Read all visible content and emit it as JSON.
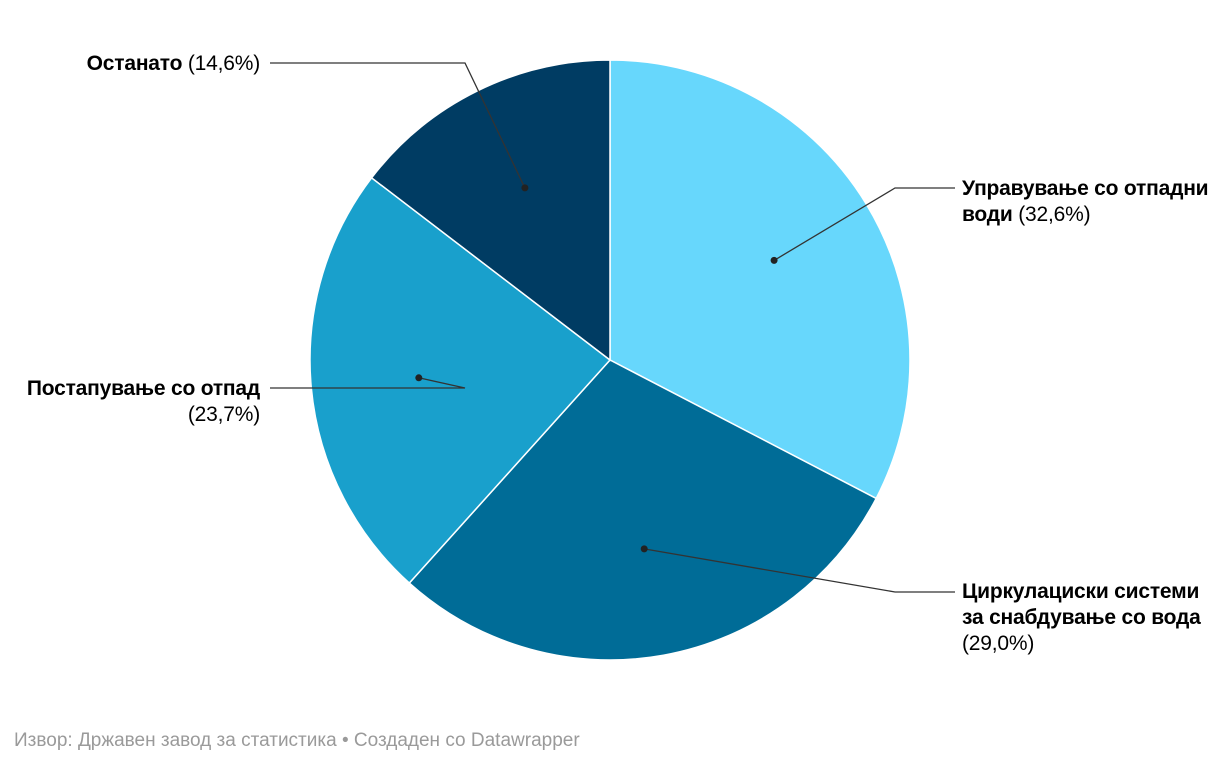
{
  "chart_data": {
    "type": "pie",
    "slices": [
      {
        "label": "Управување со отпадни води",
        "value": 32.6,
        "value_label": "(32,6%)",
        "color": "#67d7fc"
      },
      {
        "label": "Циркулациски системи за снабдување со вода",
        "value": 29.0,
        "value_label": "(29,0%)",
        "color": "#006c97"
      },
      {
        "label": "Постапување со отпад",
        "value": 23.7,
        "value_label": "(23,7%)",
        "color": "#19a0cc"
      },
      {
        "label": "Останато",
        "value": 14.6,
        "value_label": "(14,6%)",
        "color": "#003c63"
      }
    ],
    "start": "12 o'clock",
    "direction": "clockwise",
    "legend": "none"
  },
  "footer": {
    "source": "Извор: Државен завод за статистика • Создаден со Datawrapper"
  }
}
